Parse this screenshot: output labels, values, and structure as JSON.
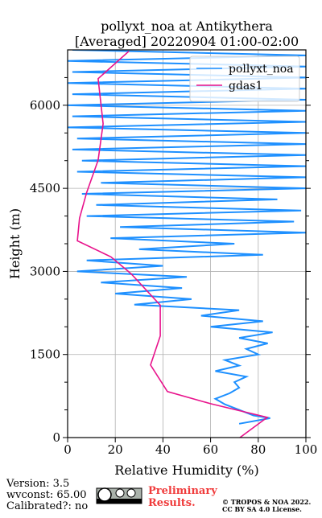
{
  "chart_data": {
    "type": "line",
    "title": "pollyxt_noa at Antikythera",
    "subtitle": "[Averaged] 20220904 01:00-02:00",
    "x_label": "Relative Humidity (%)",
    "y_label": "Height (m)",
    "xlim": [
      0,
      100
    ],
    "xticks": [
      0,
      20,
      40,
      60,
      80,
      100
    ],
    "ylim": [
      0,
      7000
    ],
    "yticks": [
      0,
      1500,
      3000,
      4500,
      6000
    ],
    "yminorticks": [
      500,
      1000,
      2000,
      2500,
      3500,
      4000,
      5000,
      5500,
      6500
    ],
    "grid": true,
    "legend": "upper right",
    "series": [
      {
        "name": "pollyxt_noa",
        "color": "#1e90ff",
        "x": [
          72,
          85,
          78,
          72,
          66,
          62,
          68,
          72,
          70,
          75,
          62,
          72,
          66,
          80,
          75,
          84,
          72,
          86,
          60,
          82,
          56,
          72,
          28,
          52,
          20,
          48,
          14,
          50,
          4,
          40,
          8,
          82,
          30,
          70,
          18,
          100,
          22,
          95,
          8,
          98,
          12,
          88,
          6,
          100,
          14,
          100,
          4,
          100,
          6,
          100,
          2,
          100,
          4,
          100,
          0,
          100,
          2,
          100,
          0,
          100,
          2,
          100,
          0,
          100,
          2,
          100,
          0,
          100,
          2
        ],
        "values": [
          250,
          350,
          400,
          500,
          600,
          700,
          800,
          900,
          1000,
          1100,
          1200,
          1300,
          1400,
          1500,
          1600,
          1700,
          1800,
          1900,
          2000,
          2100,
          2200,
          2300,
          2400,
          2500,
          2600,
          2700,
          2800,
          2900,
          3000,
          3100,
          3200,
          3300,
          3400,
          3500,
          3600,
          3700,
          3800,
          3900,
          4000,
          4100,
          4200,
          4300,
          4400,
          4500,
          4600,
          4700,
          4800,
          4900,
          5000,
          5100,
          5200,
          5300,
          5400,
          5500,
          5600,
          5700,
          5800,
          5900,
          6000,
          6100,
          6200,
          6300,
          6400,
          6500,
          6600,
          6700,
          6800,
          6900,
          7000
        ]
      },
      {
        "name": "gdas1",
        "color": "#e8138c",
        "x": [
          72.3,
          83.8,
          60,
          41.9,
          34.8,
          38.9,
          38.9,
          26.7,
          18.2,
          4.1,
          5,
          8,
          12.8,
          14.9,
          12.8,
          25.7
        ],
        "values": [
          0,
          364,
          612,
          830,
          1310,
          1835,
          2390,
          2956,
          3262,
          3553,
          3961,
          4427,
          5009,
          5665,
          6480,
          6975
        ]
      }
    ]
  },
  "footer": {
    "version": "Version: 3.5",
    "wvconst": "wvconst:  65.00",
    "calibrated": "Calibrated?: no",
    "preliminary": "Preliminary Results.",
    "copyright": "© TROPOS & NOA 2022.",
    "license": "CC BY SA 4.0 License."
  }
}
